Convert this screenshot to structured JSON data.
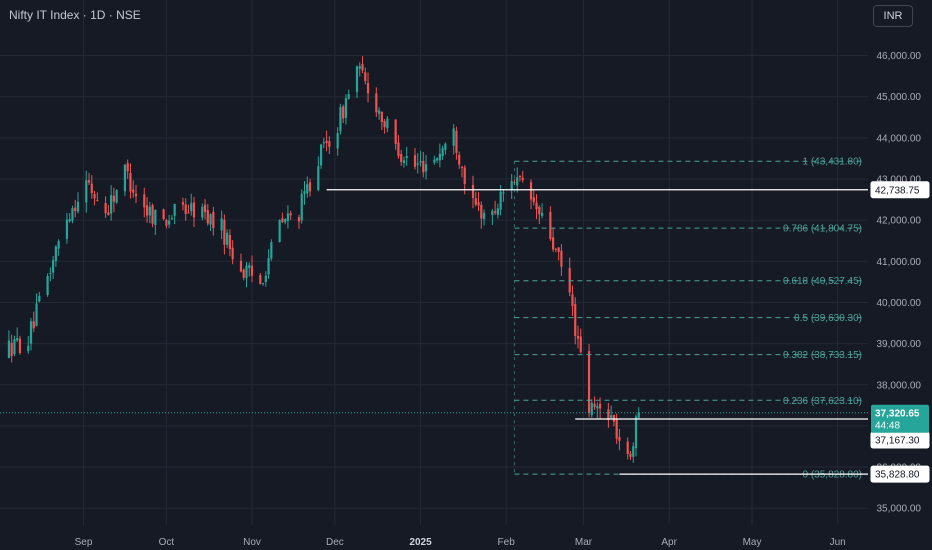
{
  "header": {
    "title": "Nifty IT Index · 1D · NSE",
    "currency": "INR"
  },
  "colors": {
    "background": "#161a25",
    "up": "#26a69a",
    "down": "#ef5350",
    "grid": "#242936",
    "fib": "#4ea297"
  },
  "y_axis": {
    "ticks": [
      {
        "value": 46000,
        "label": "46,000.00"
      },
      {
        "value": 45000,
        "label": "45,000.00"
      },
      {
        "value": 44000,
        "label": "44,000.00"
      },
      {
        "value": 43000,
        "label": "43,000.00"
      },
      {
        "value": 42000,
        "label": "42,000.00"
      },
      {
        "value": 41000,
        "label": "41,000.00"
      },
      {
        "value": 40000,
        "label": "40,000.00"
      },
      {
        "value": 39000,
        "label": "39,000.00"
      },
      {
        "value": 38000,
        "label": "38,000.00"
      },
      {
        "value": 37000,
        "label": "37,000.00"
      },
      {
        "value": 36000,
        "label": "36,000.00"
      },
      {
        "value": 35000,
        "label": "35,000.00"
      }
    ]
  },
  "x_axis": {
    "ticks": [
      {
        "label": "Sep",
        "bold": false
      },
      {
        "label": "Oct",
        "bold": false
      },
      {
        "label": "Nov",
        "bold": false
      },
      {
        "label": "Dec",
        "bold": false
      },
      {
        "label": "2025",
        "bold": true
      },
      {
        "label": "Feb",
        "bold": false
      },
      {
        "label": "Mar",
        "bold": false
      },
      {
        "label": "Apr",
        "bold": false
      },
      {
        "label": "May",
        "bold": false
      },
      {
        "label": "Jun",
        "bold": false
      }
    ]
  },
  "fibonacci": [
    {
      "level": 1,
      "price": 43431.8,
      "label": "1 (43,431.80)"
    },
    {
      "level": 0.786,
      "price": 41804.75,
      "label": "0.786 (41,804.75)"
    },
    {
      "level": 0.618,
      "price": 40527.45,
      "label": "0.618 (40,527.45)"
    },
    {
      "level": 0.5,
      "price": 39630.3,
      "label": "0.5 (39,630.30)"
    },
    {
      "level": 0.382,
      "price": 38733.15,
      "label": "0.382 (38,733.15)"
    },
    {
      "level": 0.236,
      "price": 37623.1,
      "label": "0.236 (37,623.10)"
    },
    {
      "level": 0,
      "price": 35828.8,
      "label": "0 (35,828.80)"
    }
  ],
  "horizontal_lines": [
    {
      "price": 42738.75,
      "label": "42,738.75"
    },
    {
      "price": 37167.3,
      "label": "37,167.30"
    },
    {
      "price": 35828.8,
      "label": "35,828.80"
    }
  ],
  "last_price": {
    "price": 37320.65,
    "label": "37,320.65",
    "countdown": "44:48"
  },
  "chart_data": {
    "type": "candlestick",
    "title": "Nifty IT Index · 1D · NSE",
    "x_range": [
      "2024-08",
      "2025-06"
    ],
    "ylim": [
      34700,
      46500
    ],
    "grid": true,
    "close_path": [
      {
        "date": "2024-08-05",
        "close": 38900
      },
      {
        "date": "2024-08-12",
        "close": 39100
      },
      {
        "date": "2024-08-19",
        "close": 40600
      },
      {
        "date": "2024-08-26",
        "close": 42100
      },
      {
        "date": "2024-09-02",
        "close": 42900
      },
      {
        "date": "2024-09-09",
        "close": 42200
      },
      {
        "date": "2024-09-16",
        "close": 43200
      },
      {
        "date": "2024-09-23",
        "close": 42300
      },
      {
        "date": "2024-09-30",
        "close": 42000
      },
      {
        "date": "2024-10-07",
        "close": 42300
      },
      {
        "date": "2024-10-14",
        "close": 42200
      },
      {
        "date": "2024-10-21",
        "close": 41800
      },
      {
        "date": "2024-10-28",
        "close": 40800
      },
      {
        "date": "2024-11-04",
        "close": 40500
      },
      {
        "date": "2024-11-11",
        "close": 41900
      },
      {
        "date": "2024-11-18",
        "close": 42200
      },
      {
        "date": "2024-11-25",
        "close": 43500
      },
      {
        "date": "2024-12-02",
        "close": 44300
      },
      {
        "date": "2024-12-09",
        "close": 45700
      },
      {
        "date": "2024-12-16",
        "close": 44800
      },
      {
        "date": "2024-12-23",
        "close": 43800
      },
      {
        "date": "2024-12-30",
        "close": 43300
      },
      {
        "date": "2025-01-06",
        "close": 43500
      },
      {
        "date": "2025-01-13",
        "close": 44100
      },
      {
        "date": "2025-01-20",
        "close": 42300
      },
      {
        "date": "2025-01-27",
        "close": 42100
      },
      {
        "date": "2025-02-03",
        "close": 43100
      },
      {
        "date": "2025-02-10",
        "close": 42500
      },
      {
        "date": "2025-02-17",
        "close": 41600
      },
      {
        "date": "2025-02-24",
        "close": 40200
      },
      {
        "date": "2025-03-03",
        "close": 37400
      },
      {
        "date": "2025-03-10",
        "close": 37400
      },
      {
        "date": "2025-03-17",
        "close": 36100
      },
      {
        "date": "2025-03-21",
        "close": 37320.65
      }
    ]
  }
}
